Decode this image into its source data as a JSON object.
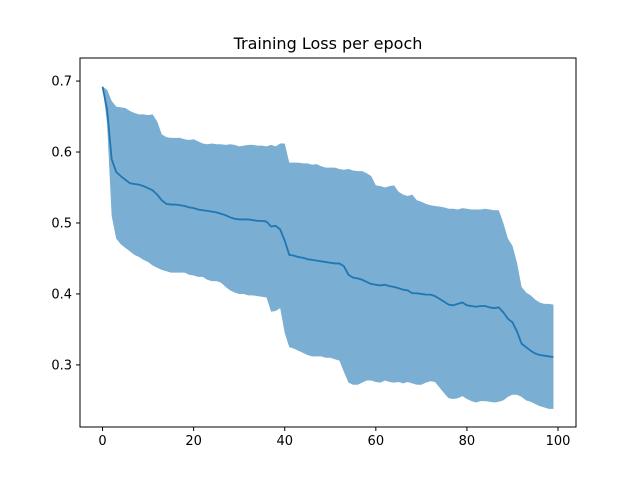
{
  "chart_data": {
    "type": "area",
    "title": "Training Loss per epoch",
    "xlabel": "",
    "ylabel": "",
    "xlim": [
      -4.95,
      103.95
    ],
    "ylim": [
      0.2125,
      0.7325
    ],
    "x_ticks": [
      0,
      20,
      40,
      60,
      80,
      100
    ],
    "x_tick_labels": [
      "0",
      "20",
      "40",
      "60",
      "80",
      "100"
    ],
    "y_ticks": [
      0.3,
      0.4,
      0.5,
      0.6,
      0.7
    ],
    "y_tick_labels": [
      "0.3",
      "0.4",
      "0.5",
      "0.6",
      "0.7"
    ],
    "grid": false,
    "legend": "none",
    "colors": {
      "line": "#1f77b4",
      "band": "#7aaed3",
      "axes": "#000000",
      "background": "#ffffff"
    },
    "series": [
      {
        "x": [
          0,
          1,
          2,
          3,
          4,
          5,
          6,
          7,
          8,
          9,
          10,
          11,
          12,
          13,
          14,
          15,
          16,
          17,
          18,
          19,
          20,
          21,
          22,
          23,
          24,
          25,
          26,
          27,
          28,
          29,
          30,
          31,
          32,
          33,
          34,
          35,
          36,
          37,
          38,
          39,
          40,
          41,
          42,
          43,
          44,
          45,
          46,
          47,
          48,
          49,
          50,
          51,
          52,
          53,
          54,
          55,
          56,
          57,
          58,
          59,
          60,
          61,
          62,
          63,
          64,
          65,
          66,
          67,
          68,
          69,
          70,
          71,
          72,
          73,
          74,
          75,
          76,
          77,
          78,
          79,
          80,
          81,
          82,
          83,
          84,
          85,
          86,
          87,
          88,
          89,
          90,
          91,
          92,
          93,
          94,
          95,
          96,
          97,
          98,
          99
        ],
        "mean": [
          0.692,
          0.66,
          0.59,
          0.572,
          0.566,
          0.561,
          0.556,
          0.555,
          0.554,
          0.552,
          0.549,
          0.546,
          0.54,
          0.532,
          0.527,
          0.526,
          0.526,
          0.525,
          0.524,
          0.522,
          0.521,
          0.519,
          0.518,
          0.517,
          0.516,
          0.515,
          0.513,
          0.511,
          0.508,
          0.506,
          0.505,
          0.505,
          0.505,
          0.504,
          0.503,
          0.503,
          0.502,
          0.495,
          0.496,
          0.491,
          0.475,
          0.455,
          0.454,
          0.452,
          0.451,
          0.449,
          0.448,
          0.447,
          0.446,
          0.445,
          0.444,
          0.443,
          0.443,
          0.439,
          0.427,
          0.423,
          0.422,
          0.42,
          0.417,
          0.414,
          0.413,
          0.412,
          0.413,
          0.411,
          0.41,
          0.408,
          0.406,
          0.405,
          0.401,
          0.401,
          0.4,
          0.399,
          0.399,
          0.397,
          0.393,
          0.389,
          0.385,
          0.384,
          0.386,
          0.388,
          0.384,
          0.383,
          0.382,
          0.383,
          0.383,
          0.381,
          0.38,
          0.381,
          0.374,
          0.365,
          0.36,
          0.347,
          0.33,
          0.325,
          0.32,
          0.316,
          0.314,
          0.313,
          0.312,
          0.311
        ],
        "lower": [
          0.692,
          0.64,
          0.51,
          0.478,
          0.47,
          0.465,
          0.46,
          0.455,
          0.452,
          0.448,
          0.445,
          0.44,
          0.437,
          0.434,
          0.432,
          0.43,
          0.43,
          0.43,
          0.43,
          0.427,
          0.426,
          0.424,
          0.424,
          0.42,
          0.418,
          0.418,
          0.416,
          0.41,
          0.405,
          0.402,
          0.4,
          0.4,
          0.398,
          0.398,
          0.397,
          0.396,
          0.395,
          0.375,
          0.376,
          0.38,
          0.345,
          0.325,
          0.323,
          0.32,
          0.317,
          0.314,
          0.312,
          0.312,
          0.312,
          0.31,
          0.31,
          0.308,
          0.306,
          0.29,
          0.275,
          0.272,
          0.272,
          0.275,
          0.278,
          0.278,
          0.276,
          0.275,
          0.278,
          0.276,
          0.275,
          0.276,
          0.274,
          0.276,
          0.274,
          0.272,
          0.272,
          0.275,
          0.277,
          0.276,
          0.268,
          0.26,
          0.253,
          0.252,
          0.253,
          0.256,
          0.252,
          0.249,
          0.247,
          0.249,
          0.249,
          0.248,
          0.247,
          0.248,
          0.25,
          0.255,
          0.258,
          0.258,
          0.255,
          0.25,
          0.248,
          0.245,
          0.242,
          0.24,
          0.238,
          0.238
        ],
        "upper": [
          0.692,
          0.688,
          0.672,
          0.664,
          0.663,
          0.662,
          0.658,
          0.655,
          0.653,
          0.653,
          0.652,
          0.653,
          0.643,
          0.625,
          0.621,
          0.62,
          0.62,
          0.62,
          0.618,
          0.617,
          0.618,
          0.615,
          0.612,
          0.611,
          0.612,
          0.611,
          0.611,
          0.61,
          0.611,
          0.61,
          0.608,
          0.609,
          0.61,
          0.61,
          0.609,
          0.609,
          0.608,
          0.61,
          0.608,
          0.612,
          0.612,
          0.585,
          0.585,
          0.585,
          0.584,
          0.584,
          0.582,
          0.583,
          0.58,
          0.578,
          0.578,
          0.578,
          0.576,
          0.575,
          0.576,
          0.574,
          0.573,
          0.573,
          0.57,
          0.566,
          0.553,
          0.552,
          0.55,
          0.552,
          0.553,
          0.544,
          0.54,
          0.538,
          0.54,
          0.532,
          0.53,
          0.527,
          0.525,
          0.524,
          0.523,
          0.522,
          0.52,
          0.52,
          0.519,
          0.521,
          0.52,
          0.519,
          0.519,
          0.519,
          0.52,
          0.519,
          0.518,
          0.518,
          0.5,
          0.478,
          0.468,
          0.444,
          0.41,
          0.402,
          0.398,
          0.392,
          0.388,
          0.386,
          0.386,
          0.385
        ]
      }
    ]
  }
}
